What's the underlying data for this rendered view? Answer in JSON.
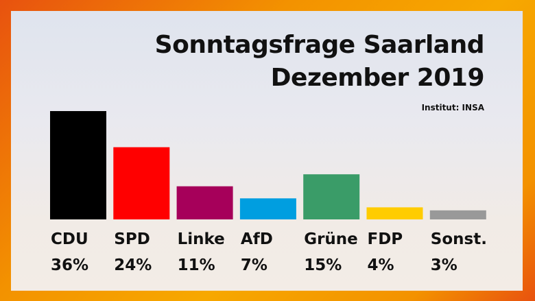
{
  "title_line1": "Sonntagsfrage Saarland",
  "title_line2": "Dezember 2019",
  "source": "Institut: INSA",
  "chart_data": {
    "type": "bar",
    "title": "Sonntagsfrage Saarland Dezember 2019",
    "categories": [
      "CDU",
      "SPD",
      "Linke",
      "AfD",
      "Grüne",
      "FDP",
      "Sonst."
    ],
    "values": [
      36,
      24,
      11,
      7,
      15,
      4,
      3
    ],
    "value_labels": [
      "36%",
      "24%",
      "11%",
      "7%",
      "15%",
      "4%",
      "3%"
    ],
    "colors": [
      "#000000",
      "#ff0000",
      "#a6005a",
      "#009ee0",
      "#3a9c68",
      "#ffcc00",
      "#999999"
    ],
    "ylim": [
      0,
      36
    ],
    "grid": false,
    "legend": "none"
  }
}
